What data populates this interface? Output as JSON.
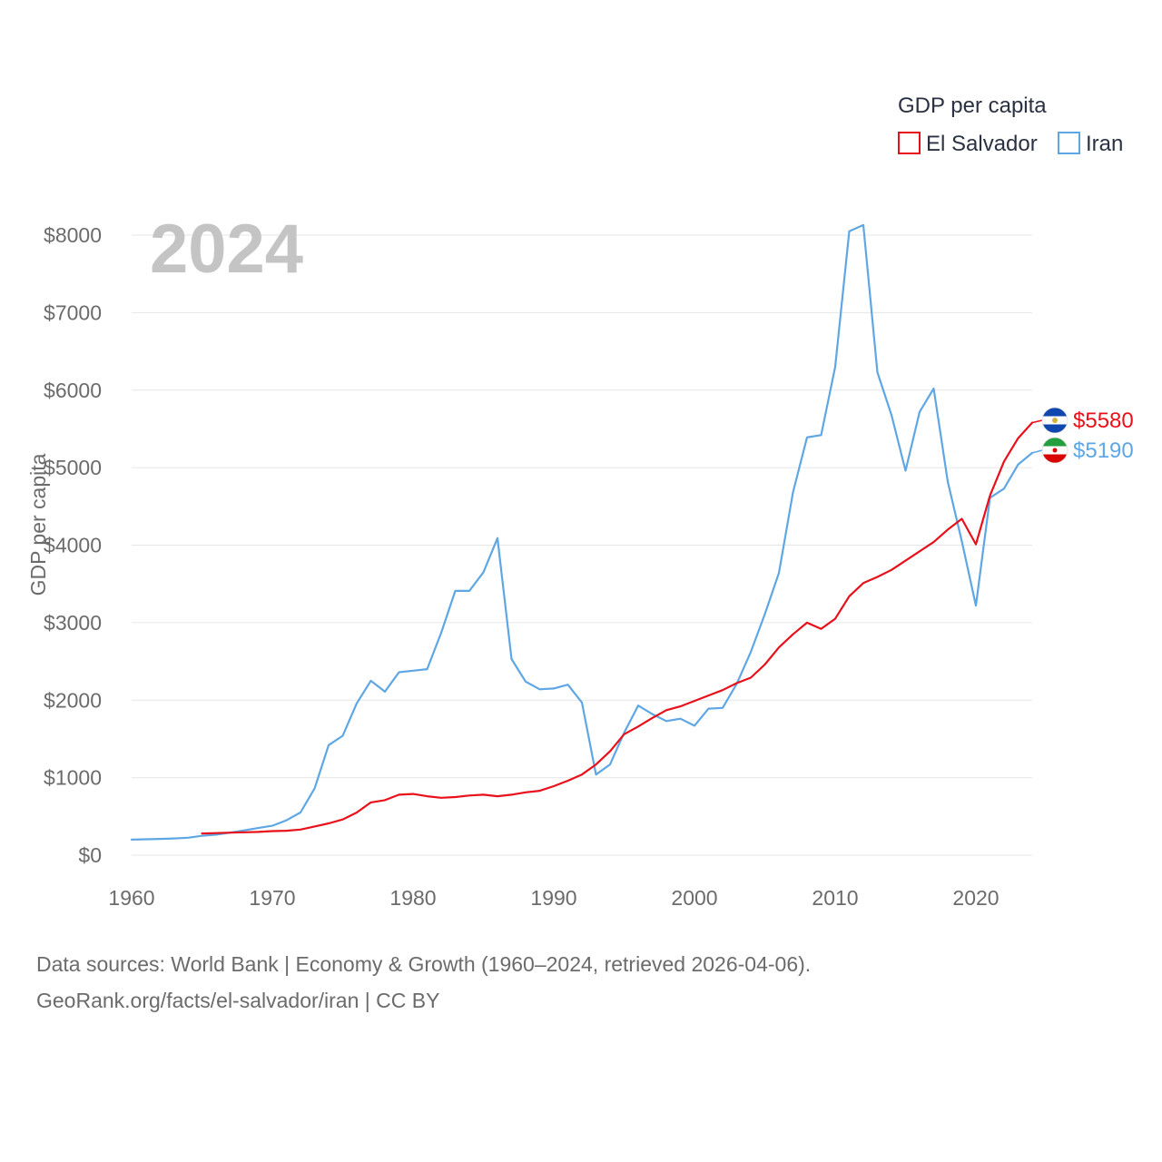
{
  "chart_data": {
    "type": "line",
    "title": "GDP per capita",
    "year_label": "2024",
    "xlabel": "",
    "ylabel": "GDP per capita",
    "xlim": [
      1960,
      2024
    ],
    "ylim": [
      0,
      8000
    ],
    "x_ticks": [
      1960,
      1970,
      1980,
      1990,
      2000,
      2010,
      2020
    ],
    "y_ticks": [
      0,
      1000,
      2000,
      3000,
      4000,
      5000,
      6000,
      7000,
      8000
    ],
    "y_tick_labels": [
      "$0",
      "$1000",
      "$2000",
      "$3000",
      "$4000",
      "$5000",
      "$6000",
      "$7000",
      "$8000"
    ],
    "grid": "horizontal",
    "legend_position": "top-right",
    "series": [
      {
        "name": "El Salvador",
        "color": "#e8101a",
        "end_label": "$5580",
        "flag_icon": "el-salvador-flag-icon",
        "x": [
          1965,
          1966,
          1967,
          1968,
          1969,
          1970,
          1971,
          1972,
          1973,
          1974,
          1975,
          1976,
          1977,
          1978,
          1979,
          1980,
          1981,
          1982,
          1983,
          1984,
          1985,
          1986,
          1987,
          1988,
          1989,
          1990,
          1991,
          1992,
          1993,
          1994,
          1995,
          1996,
          1997,
          1998,
          1999,
          2000,
          2001,
          2002,
          2003,
          2004,
          2005,
          2006,
          2007,
          2008,
          2009,
          2010,
          2011,
          2012,
          2013,
          2014,
          2015,
          2016,
          2017,
          2018,
          2019,
          2020,
          2021,
          2022,
          2023,
          2024
        ],
        "values": [
          280,
          285,
          290,
          295,
          300,
          310,
          315,
          330,
          370,
          410,
          460,
          550,
          680,
          710,
          780,
          790,
          760,
          740,
          750,
          770,
          780,
          760,
          780,
          810,
          830,
          890,
          960,
          1040,
          1170,
          1340,
          1560,
          1660,
          1770,
          1870,
          1920,
          1990,
          2060,
          2130,
          2220,
          2290,
          2460,
          2680,
          2850,
          3000,
          2920,
          3050,
          3340,
          3510,
          3590,
          3680,
          3800,
          3920,
          4040,
          4200,
          4340,
          4010,
          4640,
          5080,
          5380,
          5580
        ]
      },
      {
        "name": "Iran",
        "color": "#5ea7e4",
        "end_label": "$5190",
        "flag_icon": "iran-flag-icon",
        "x": [
          1960,
          1961,
          1962,
          1963,
          1964,
          1965,
          1966,
          1967,
          1968,
          1969,
          1970,
          1971,
          1972,
          1973,
          1974,
          1975,
          1976,
          1977,
          1978,
          1979,
          1980,
          1981,
          1982,
          1983,
          1984,
          1985,
          1986,
          1987,
          1988,
          1989,
          1990,
          1991,
          1992,
          1993,
          1994,
          1995,
          1996,
          1997,
          1998,
          1999,
          2000,
          2001,
          2002,
          2003,
          2004,
          2005,
          2006,
          2007,
          2008,
          2009,
          2010,
          2011,
          2012,
          2013,
          2014,
          2015,
          2016,
          2017,
          2018,
          2019,
          2020,
          2021,
          2022,
          2023,
          2024
        ],
        "values": [
          200,
          205,
          210,
          215,
          225,
          250,
          265,
          290,
          320,
          350,
          380,
          450,
          550,
          860,
          1420,
          1540,
          1960,
          2250,
          2110,
          2360,
          2380,
          2400,
          2870,
          3410,
          3410,
          3650,
          4090,
          2530,
          2240,
          2140,
          2150,
          2200,
          1970,
          1040,
          1170,
          1580,
          1930,
          1820,
          1730,
          1760,
          1670,
          1890,
          1900,
          2210,
          2620,
          3110,
          3640,
          4680,
          5390,
          5420,
          6300,
          8050,
          8130,
          6230,
          5680,
          4960,
          5720,
          6020,
          4820,
          4050,
          3220,
          4610,
          4730,
          5040,
          5190
        ]
      }
    ]
  },
  "footer": {
    "line1": "Data sources: World Bank | Economy & Growth (1960–2024, retrieved 2026-04-06).",
    "line2": "GeoRank.org/facts/el-salvador/iran | CC BY"
  }
}
